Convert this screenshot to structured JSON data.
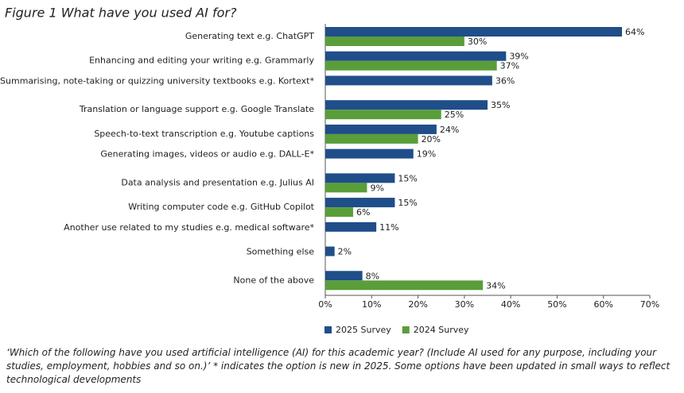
{
  "chart_data": {
    "type": "bar",
    "orientation": "horizontal",
    "title": "Figure 1 What have you used AI for?",
    "categories": [
      "Generating text e.g. ChatGPT",
      "Enhancing and editing your writing e.g. Grammarly",
      "Summarising, note-taking or quizzing university textbooks e.g. Kortext*",
      "Translation or language support e.g. Google Translate",
      "Speech-to-text transcription e.g. Youtube captions",
      "Generating images, videos or audio e.g. DALL-E*",
      "Data analysis and presentation e.g. Julius AI",
      "Writing computer code e.g. GitHub Copilot",
      "Another use related to my studies e.g. medical software*",
      "Something else",
      "None of the above"
    ],
    "series": [
      {
        "name": "2025 Survey",
        "color": "#1f4e89",
        "values": [
          64,
          39,
          36,
          35,
          24,
          19,
          15,
          15,
          11,
          2,
          8
        ],
        "value_labels": [
          "64%",
          "39%",
          "36%",
          "35%",
          "24%",
          "19%",
          "15%",
          "15%",
          "11%",
          "2%",
          "8%"
        ]
      },
      {
        "name": "2024 Survey",
        "color": "#5a9e3a",
        "values": [
          30,
          37,
          null,
          25,
          20,
          null,
          9,
          6,
          null,
          null,
          34
        ],
        "value_labels": [
          "30%",
          "37%",
          null,
          "25%",
          "20%",
          null,
          "9%",
          "6%",
          null,
          null,
          "34%"
        ]
      }
    ],
    "xlim": [
      0,
      70
    ],
    "xticks": [
      {
        "value": 0,
        "label": "0%"
      },
      {
        "value": 10,
        "label": "10%"
      },
      {
        "value": 20,
        "label": "20%"
      },
      {
        "value": 30,
        "label": "30%"
      },
      {
        "value": 40,
        "label": "40%"
      },
      {
        "value": 50,
        "label": "50%"
      },
      {
        "value": 60,
        "label": "60%"
      },
      {
        "value": 70,
        "label": "70%"
      }
    ],
    "legend": "bottom",
    "caption": "‘Which of the following have you used artificial intelligence (AI) for this academic year? (Include AI used for any purpose, including your studies, employment, hobbies and so on.)’ * indicates the option is new in 2025. Some options have been updated in small ways to reflect technological developments"
  }
}
